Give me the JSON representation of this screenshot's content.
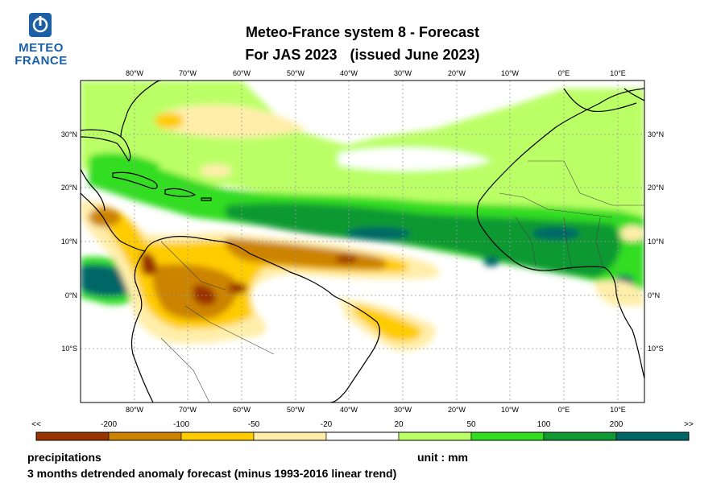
{
  "header": {
    "logo_line1": "METEO",
    "logo_line2": "FRANCE",
    "title": "Meteo-France system 8  -  Forecast",
    "subtitle_period": "For JAS 2023",
    "subtitle_issue": "(issued June 2023)"
  },
  "map": {
    "lon_labels": [
      "80°W",
      "70°W",
      "60°W",
      "50°W",
      "40°W",
      "30°W",
      "20°W",
      "10°W",
      "0°E",
      "10°E"
    ],
    "lat_labels": [
      "30°N",
      "20°N",
      "10°N",
      "0°N",
      "10°S"
    ]
  },
  "legend": {
    "low_end": "<<",
    "high_end": ">>",
    "thresholds": [
      "-200",
      "-100",
      "-50",
      "-20",
      "20",
      "50",
      "100",
      "200"
    ],
    "colors": [
      "#993300",
      "#cc8400",
      "#ffcc00",
      "#ffeeaa",
      "#ffffff",
      "#bbff66",
      "#33dd22",
      "#119933",
      "#006666"
    ]
  },
  "footer": {
    "variable": "precipitations",
    "unit": "unit : mm",
    "description": "3 months detrended anomaly forecast (minus 1993-2016 linear trend)"
  }
}
